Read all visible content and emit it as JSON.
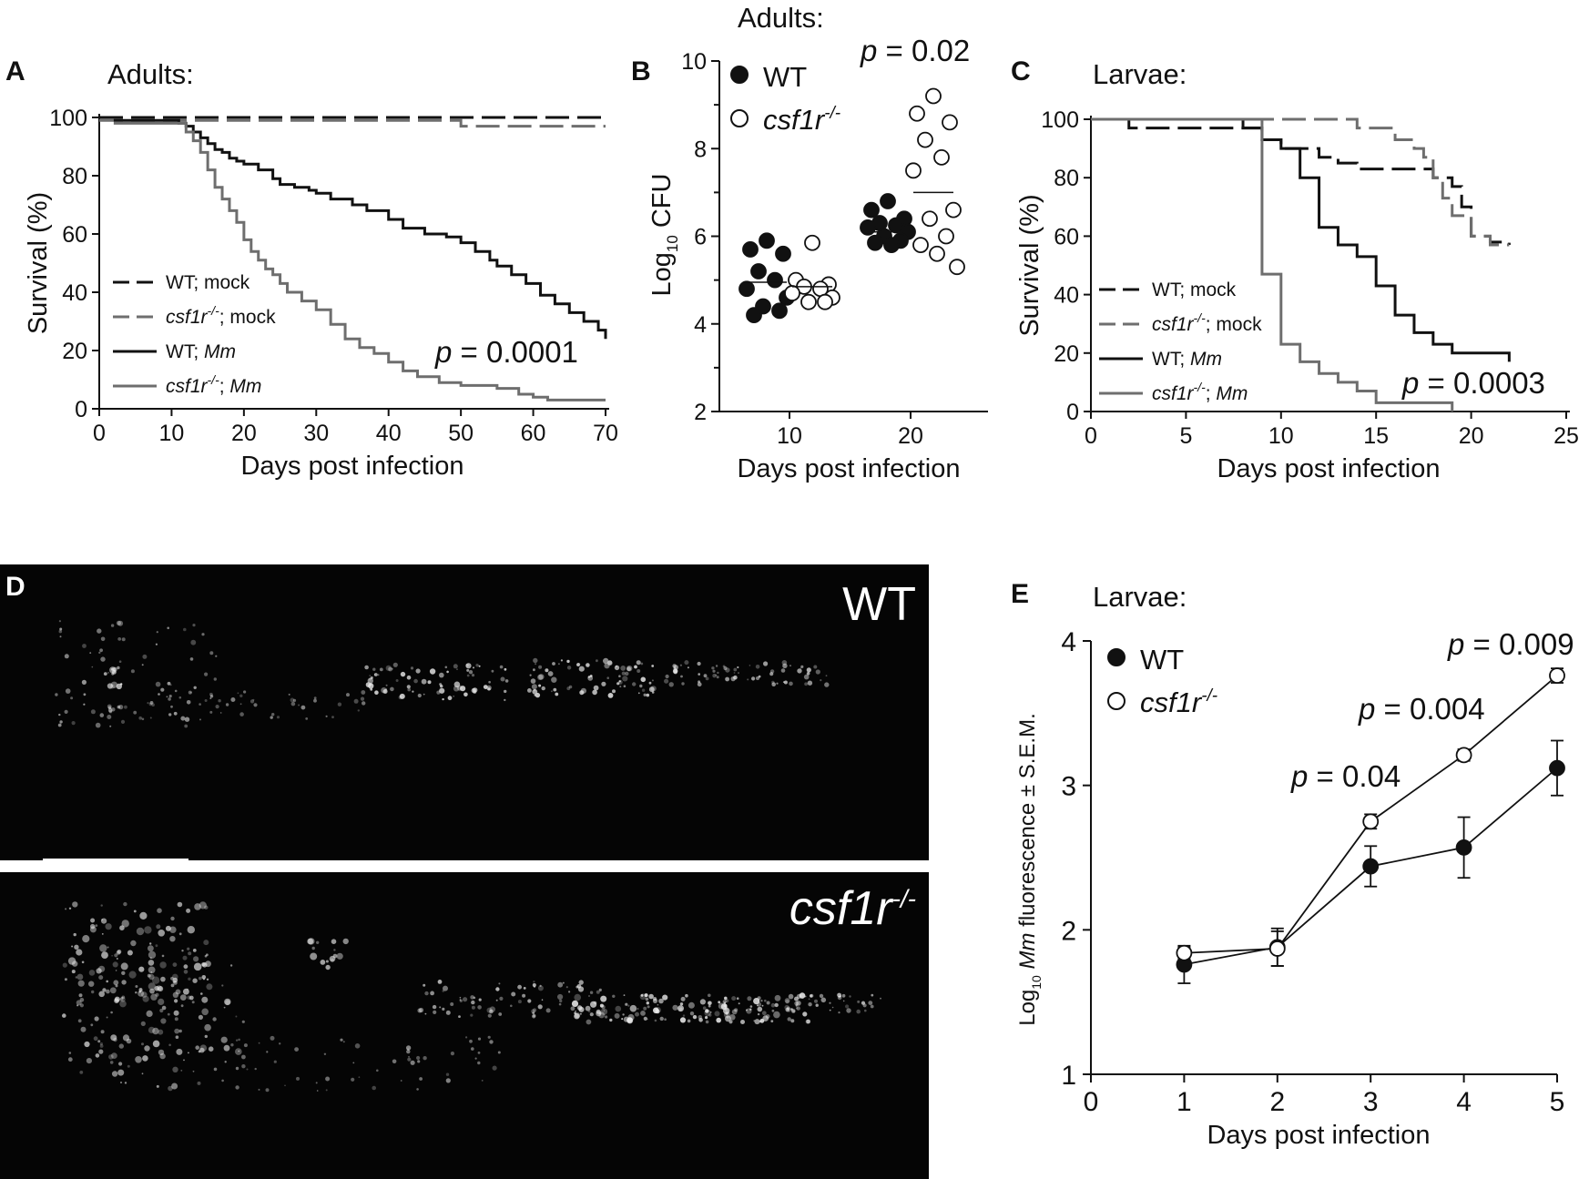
{
  "colors": {
    "black": "#111111",
    "gray": "#6e6e6e",
    "micro_bg": "#050505"
  },
  "chart_data": [
    {
      "id": "A",
      "panel_letter": "A",
      "type": "line",
      "step": true,
      "title": "Adults:",
      "xlabel": "Days post infection",
      "ylabel": "Survival (%)",
      "xlim": [
        0,
        70
      ],
      "ylim": [
        0,
        100
      ],
      "xticks": [
        0,
        10,
        20,
        30,
        40,
        50,
        60,
        70
      ],
      "yticks": [
        0,
        20,
        40,
        60,
        80,
        100
      ],
      "annotation": {
        "prefix": "p",
        "text": " = 0.0001"
      },
      "legend_position": "bottom-left",
      "series": [
        {
          "name": "WT; mock",
          "color": "black",
          "dash": true,
          "x": [
            0,
            70
          ],
          "y": [
            100,
            100
          ]
        },
        {
          "name": "csf1r-/-; mock",
          "color": "gray",
          "dash": true,
          "x": [
            0,
            50,
            50,
            70
          ],
          "y": [
            99,
            99,
            97,
            97
          ]
        },
        {
          "name": "WT; Mm",
          "color": "black",
          "dash": false,
          "x": [
            2,
            9,
            11,
            12,
            13,
            14,
            15,
            16,
            17,
            18,
            19,
            20,
            22,
            24,
            25,
            27,
            29,
            30,
            32,
            35,
            37,
            40,
            42,
            45,
            48,
            50,
            52,
            54,
            55,
            57,
            59,
            61,
            63,
            65,
            67,
            69,
            70
          ],
          "y": [
            99,
            99,
            98,
            97,
            95,
            93,
            91,
            89,
            88,
            86,
            85,
            84,
            82,
            79,
            77,
            76,
            75,
            74,
            72,
            70,
            68,
            65,
            62,
            60,
            59,
            57,
            54,
            51,
            49,
            46,
            43,
            39,
            36,
            33,
            30,
            27,
            24
          ]
        },
        {
          "name": "csf1r-/-; Mm",
          "color": "gray",
          "dash": false,
          "x": [
            2,
            10,
            12,
            13,
            14,
            15,
            16,
            17,
            18,
            19,
            20,
            21,
            22,
            23,
            24,
            25,
            26,
            28,
            30,
            32,
            34,
            36,
            38,
            40,
            42,
            44,
            47,
            50,
            55,
            58,
            60,
            62,
            65,
            70
          ],
          "y": [
            98,
            98,
            95,
            92,
            88,
            82,
            76,
            72,
            68,
            64,
            58,
            54,
            51,
            48,
            46,
            43,
            40,
            37,
            34,
            29,
            24,
            21,
            19,
            16,
            13,
            11,
            9,
            8,
            7,
            5,
            4,
            3,
            3,
            3
          ]
        }
      ]
    },
    {
      "id": "B",
      "panel_letter": "B",
      "type": "scatter",
      "title": "Adults:",
      "xlabel": "Days post infection",
      "ylabel_main": "Log",
      "ylabel_sub": "10",
      "ylabel_rest": " CFU",
      "categories": [
        "10",
        "20"
      ],
      "ylim": [
        2,
        10
      ],
      "yticks": [
        2,
        4,
        6,
        8,
        10
      ],
      "annotation": {
        "prefix": "p",
        "text": " = 0.02"
      },
      "series": [
        {
          "name": "WT",
          "filled": true,
          "groups": [
            {
              "category": "10",
              "values": [
                5.9,
                5.7,
                5.6,
                5.2,
                5.0,
                4.8,
                4.6,
                4.4,
                4.3,
                4.2
              ],
              "mean": 4.95
            },
            {
              "category": "20",
              "values": [
                6.8,
                6.6,
                6.4,
                6.3,
                6.25,
                6.2,
                6.1,
                6.0,
                5.9,
                5.85,
                5.8
              ],
              "mean": 6.1
            }
          ]
        },
        {
          "name": "csf1r-/-",
          "filled": false,
          "groups": [
            {
              "category": "10",
              "values": [
                5.85,
                5.0,
                4.9,
                4.85,
                4.8,
                4.7,
                4.6,
                4.5,
                4.5
              ],
              "mean": 4.85
            },
            {
              "category": "20",
              "values": [
                9.2,
                8.8,
                8.6,
                8.2,
                7.8,
                7.5,
                6.6,
                6.4,
                6.0,
                5.8,
                5.6,
                5.3
              ],
              "mean": 7.0
            }
          ]
        }
      ]
    },
    {
      "id": "C",
      "panel_letter": "C",
      "type": "line",
      "step": true,
      "title": "Larvae:",
      "xlabel": "Days post infection",
      "ylabel": "Survival (%)",
      "xlim": [
        0,
        25
      ],
      "ylim": [
        0,
        100
      ],
      "xticks": [
        0,
        5,
        10,
        15,
        20,
        25
      ],
      "yticks": [
        0,
        20,
        40,
        60,
        80,
        100
      ],
      "annotation": {
        "prefix": "p",
        "text": " = 0.0003"
      },
      "legend_position": "bottom-left",
      "series": [
        {
          "name": "WT; mock",
          "color": "black",
          "dash": true,
          "x": [
            0,
            2,
            2,
            8,
            9,
            10,
            11,
            12,
            13,
            14,
            15,
            16,
            17,
            18,
            19,
            19.5,
            20,
            21,
            22
          ],
          "y": [
            100,
            100,
            97,
            97,
            93,
            90,
            90,
            87,
            85,
            83,
            83,
            83,
            83,
            80,
            77,
            70,
            60,
            58,
            57
          ]
        },
        {
          "name": "csf1r-/-; mock",
          "color": "gray",
          "dash": true,
          "x": [
            0,
            13,
            14,
            15,
            16,
            17,
            17.5,
            18,
            18.5,
            19,
            20,
            21,
            22
          ],
          "y": [
            100,
            100,
            97,
            97,
            93,
            90,
            87,
            80,
            73,
            67,
            60,
            57,
            57
          ]
        },
        {
          "name": "WT; Mm",
          "color": "black",
          "dash": false,
          "x": [
            0,
            7,
            8,
            9,
            10,
            11,
            12,
            13,
            14,
            15,
            16,
            17,
            18,
            19,
            20,
            21,
            22
          ],
          "y": [
            100,
            100,
            97,
            93,
            90,
            80,
            63,
            57,
            53,
            43,
            33,
            27,
            23,
            20,
            20,
            20,
            17
          ]
        },
        {
          "name": "csf1r-/-; Mm",
          "color": "gray",
          "dash": false,
          "x": [
            0,
            8,
            9,
            10,
            11,
            12,
            13,
            14,
            15,
            19
          ],
          "y": [
            100,
            100,
            47,
            23,
            17,
            13,
            10,
            7,
            3,
            0
          ]
        }
      ]
    },
    {
      "id": "E",
      "panel_letter": "E",
      "type": "line",
      "title": "Larvae:",
      "xlabel": "Days post infection",
      "ylabel_pre": "Log",
      "ylabel_sub": "10",
      "ylabel_italic": " Mm",
      "ylabel_rest": " fluorescence ± S.E.M.",
      "xlim": [
        0,
        5
      ],
      "ylim": [
        1,
        4
      ],
      "xticks": [
        0,
        1,
        2,
        3,
        4,
        5
      ],
      "yticks": [
        1,
        2,
        3,
        4
      ],
      "x": [
        1,
        2,
        3,
        4,
        5
      ],
      "annotations": [
        {
          "x": 3,
          "prefix": "p",
          "text": " = 0.04"
        },
        {
          "x": 4,
          "prefix": "p",
          "text": " = 0.004"
        },
        {
          "x": 5,
          "prefix": "p",
          "text": " = 0.009"
        }
      ],
      "series": [
        {
          "name": "WT",
          "filled": true,
          "values": [
            1.76,
            1.88,
            2.44,
            2.57,
            3.12
          ],
          "sem": [
            0.13,
            0.13,
            0.14,
            0.21,
            0.19
          ]
        },
        {
          "name": "csf1r-/-",
          "filled": false,
          "values": [
            1.84,
            1.87,
            2.75,
            3.21,
            3.76
          ],
          "sem": [
            0.04,
            0.12,
            0.05,
            0.04,
            0.05
          ]
        }
      ]
    }
  ],
  "panel_d": {
    "panel_letter": "D",
    "images": [
      {
        "label": "WT",
        "label_italic": false
      },
      {
        "label": "csf1r",
        "label_sup": "-/-",
        "label_italic": true
      }
    ]
  }
}
